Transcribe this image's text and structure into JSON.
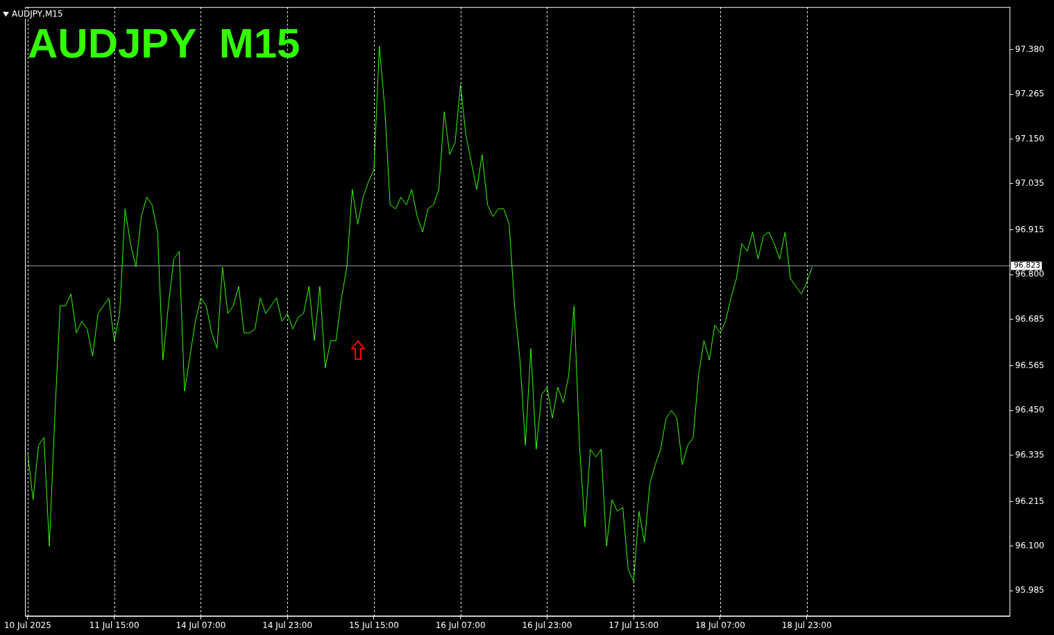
{
  "chart_data": {
    "type": "line",
    "title": "AUDJPY  M15",
    "subtitle": "AUDJPY,M15",
    "categories": [
      "10 Jul 2025",
      null,
      null,
      null,
      null,
      null,
      null,
      null,
      null,
      null,
      null,
      null,
      null,
      null,
      null,
      null,
      "11 Jul 15:00",
      null,
      null,
      null,
      null,
      null,
      null,
      null,
      null,
      null,
      null,
      null,
      null,
      null,
      null,
      null,
      "14 Jul 07:00",
      null,
      null,
      null,
      null,
      null,
      null,
      null,
      null,
      null,
      null,
      null,
      null,
      null,
      null,
      null,
      "14 Jul 23:00",
      null,
      null,
      null,
      null,
      null,
      null,
      null,
      null,
      null,
      null,
      null,
      null,
      null,
      null,
      null,
      "15 Jul 15:00",
      null,
      null,
      null,
      null,
      null,
      null,
      null,
      null,
      null,
      null,
      null,
      null,
      null,
      null,
      null,
      "16 Jul 07:00",
      null,
      null,
      null,
      null,
      null,
      null,
      null,
      null,
      null,
      null,
      null,
      null,
      null,
      null,
      null,
      "16 Jul 23:00",
      null,
      null,
      null,
      null,
      null,
      null,
      null,
      null,
      null,
      null,
      null,
      null,
      null,
      null,
      null,
      "17 Jul 15:00",
      null,
      null,
      null,
      null,
      null,
      null,
      null,
      null,
      null,
      null,
      null,
      null,
      null,
      null,
      null,
      "18 Jul 07:00",
      null,
      null,
      null,
      null,
      null,
      null,
      null,
      null,
      null,
      null,
      null,
      null,
      null,
      null,
      null,
      "18 Jul 23:00",
      null,
      null,
      null,
      null,
      null,
      null,
      null,
      null,
      null,
      null,
      null,
      null,
      null,
      null,
      null,
      null,
      null,
      null,
      null,
      null,
      null,
      null,
      null,
      null,
      null,
      null,
      null,
      null,
      null,
      null,
      null,
      null,
      null,
      null,
      null,
      null,
      null
    ],
    "series": [
      {
        "color": "#33ff00",
        "values": [
          96.34,
          96.22,
          96.36,
          96.38,
          96.1,
          96.43,
          96.72,
          96.72,
          96.75,
          96.65,
          96.68,
          96.66,
          96.59,
          96.7,
          96.72,
          96.74,
          96.63,
          96.7,
          96.97,
          96.88,
          96.82,
          96.95,
          97.0,
          96.98,
          96.91,
          96.58,
          96.72,
          96.84,
          96.86,
          96.5,
          96.59,
          96.68,
          96.74,
          96.72,
          96.65,
          96.61,
          96.82,
          96.7,
          96.72,
          96.77,
          96.65,
          96.65,
          96.66,
          96.74,
          96.7,
          96.72,
          96.74,
          96.68,
          96.7,
          96.66,
          96.69,
          96.7,
          96.77,
          96.63,
          96.77,
          96.56,
          96.63,
          96.63,
          96.74,
          96.82,
          97.02,
          96.93,
          97.0,
          97.04,
          97.07,
          97.39,
          97.23,
          96.98,
          96.97,
          97.0,
          96.98,
          97.02,
          96.95,
          96.91,
          96.97,
          96.98,
          97.02,
          97.22,
          97.11,
          97.14,
          97.29,
          97.16,
          97.09,
          97.02,
          97.11,
          96.98,
          96.95,
          96.97,
          96.97,
          96.93,
          96.72,
          96.58,
          96.36,
          96.61,
          96.35,
          96.49,
          96.51,
          96.43,
          96.51,
          96.47,
          96.54,
          96.72,
          96.36,
          96.15,
          96.35,
          96.33,
          96.35,
          96.1,
          96.22,
          96.19,
          96.2,
          96.04,
          96.01,
          96.19,
          96.11,
          96.26,
          96.31,
          96.35,
          96.43,
          96.45,
          96.43,
          96.31,
          96.36,
          96.38,
          96.54,
          96.63,
          96.58,
          96.67,
          96.65,
          96.68,
          96.74,
          96.79,
          96.88,
          96.86,
          96.91,
          96.84,
          96.9,
          96.91,
          96.88,
          96.84,
          96.91,
          96.79,
          96.77,
          96.75,
          96.78,
          96.82,
          null,
          null,
          null,
          null,
          null,
          null,
          null,
          null,
          null,
          null,
          null,
          null,
          null,
          null,
          null,
          null,
          null,
          null,
          null,
          null,
          null,
          null,
          null,
          null,
          null,
          null,
          null,
          null,
          null,
          null,
          null,
          null,
          null,
          null,
          null,
          null
        ]
      }
    ],
    "ylim": [
      95.92,
      97.49
    ],
    "yticks": [
      {
        "value": 95.985,
        "label": "95.985"
      },
      {
        "value": 96.1,
        "label": "96.100"
      },
      {
        "value": 96.215,
        "label": "96.215"
      },
      {
        "value": 96.335,
        "label": "96.335"
      },
      {
        "value": 96.45,
        "label": "96.450"
      },
      {
        "value": 96.565,
        "label": "96.565"
      },
      {
        "value": 96.685,
        "label": "96.685"
      },
      {
        "value": 96.8,
        "label": "96.800"
      },
      {
        "value": 96.915,
        "label": "96.915"
      },
      {
        "value": 97.035,
        "label": "97.035"
      },
      {
        "value": 97.15,
        "label": "97.150"
      },
      {
        "value": 97.265,
        "label": "97.265"
      },
      {
        "value": 97.38,
        "label": "97.380"
      }
    ],
    "ref_lines": [
      {
        "axis": "y",
        "value": 96.823,
        "label": "96.823",
        "color": "#8c9aa8"
      }
    ],
    "grid": "x",
    "marker": "none",
    "line_style": "solid"
  }
}
